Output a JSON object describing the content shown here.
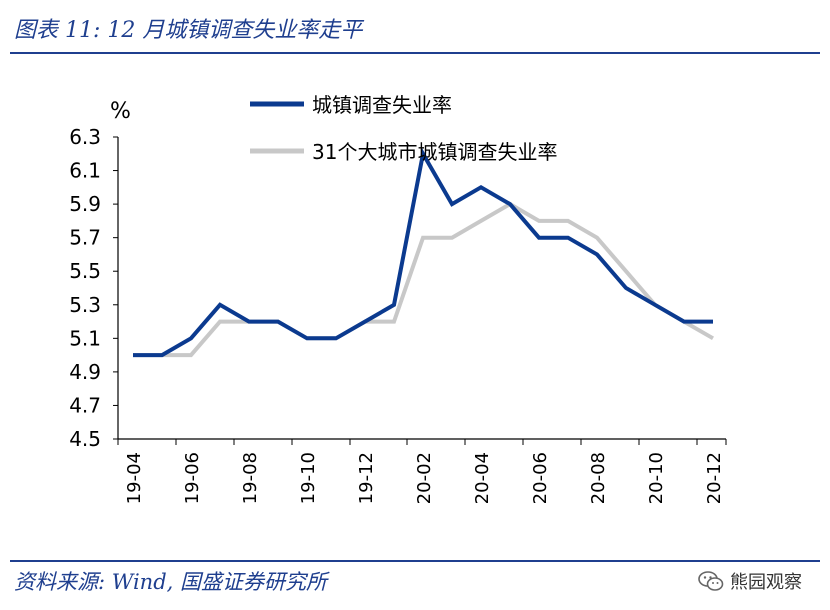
{
  "figure": {
    "title": "图表 11:  12 月城镇调查失业率走平",
    "source": "资料来源:  Wind,  国盛证券研究所",
    "watermark": "熊园观察",
    "watermark_icon": "wechat-logo"
  },
  "chart_data": {
    "type": "line",
    "title": "图表 11:  12 月城镇调查失业率走平",
    "ylabel": "%",
    "xlabel": "",
    "ylim": [
      4.5,
      6.3
    ],
    "yticks": [
      "6.3",
      "6.1",
      "5.9",
      "5.7",
      "5.5",
      "5.3",
      "5.1",
      "4.9",
      "4.7",
      "4.5"
    ],
    "yticks_values": [
      6.3,
      6.1,
      5.9,
      5.7,
      5.5,
      5.3,
      5.1,
      4.9,
      4.7,
      4.5
    ],
    "categories": [
      "19-04",
      "19-05",
      "19-06",
      "19-07",
      "19-08",
      "19-09",
      "19-10",
      "19-11",
      "19-12",
      "20-01",
      "20-02",
      "20-03",
      "20-04",
      "20-05",
      "20-06",
      "20-07",
      "20-08",
      "20-09",
      "20-10",
      "20-11",
      "20-12"
    ],
    "xtick_labels": [
      "19-04",
      "19-06",
      "19-08",
      "19-10",
      "19-12",
      "20-02",
      "20-04",
      "20-06",
      "20-08",
      "20-10",
      "20-12"
    ],
    "series": [
      {
        "name": "城镇调查失业率",
        "color": "#0b3a8f",
        "values": [
          5.0,
          5.0,
          5.1,
          5.3,
          5.2,
          5.2,
          5.1,
          5.1,
          5.2,
          5.3,
          6.2,
          5.9,
          6.0,
          5.9,
          5.7,
          5.7,
          5.6,
          5.4,
          5.3,
          5.2,
          5.2
        ]
      },
      {
        "name": "31个大城市城镇调查失业率",
        "color": "#c8c8c8",
        "values": [
          5.0,
          5.0,
          5.0,
          5.2,
          5.2,
          5.2,
          5.1,
          5.1,
          5.2,
          5.2,
          5.7,
          5.7,
          5.8,
          5.9,
          5.8,
          5.8,
          5.7,
          5.5,
          5.3,
          5.2,
          5.1
        ]
      }
    ],
    "grid": false,
    "legend": "top-right"
  }
}
